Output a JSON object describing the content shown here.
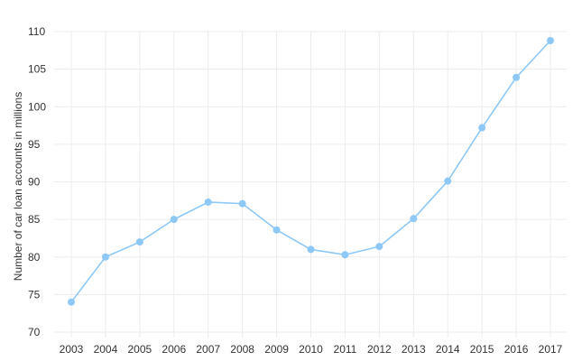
{
  "colors": {
    "series": "#8ec8f7",
    "grid": "#ececec",
    "text": "#333333"
  },
  "chart_data": {
    "type": "line",
    "title": "",
    "xlabel": "",
    "ylabel": "Number of car loan accounts in millions",
    "ylim": [
      70,
      110
    ],
    "yticks": [
      "70",
      "75",
      "80",
      "85",
      "90",
      "95",
      "100",
      "105",
      "110"
    ],
    "grid": true,
    "legend": "none",
    "categories": [
      "2003",
      "2004",
      "2005",
      "2006",
      "2007",
      "2008",
      "2009",
      "2010",
      "2011",
      "2012",
      "2013",
      "2014",
      "2015",
      "2016",
      "2017"
    ],
    "series": [
      {
        "values": [
          74.0,
          80.0,
          82.0,
          85.0,
          87.3,
          87.1,
          83.6,
          81.0,
          80.3,
          81.4,
          85.1,
          90.1,
          97.2,
          103.9,
          108.8
        ]
      }
    ]
  }
}
